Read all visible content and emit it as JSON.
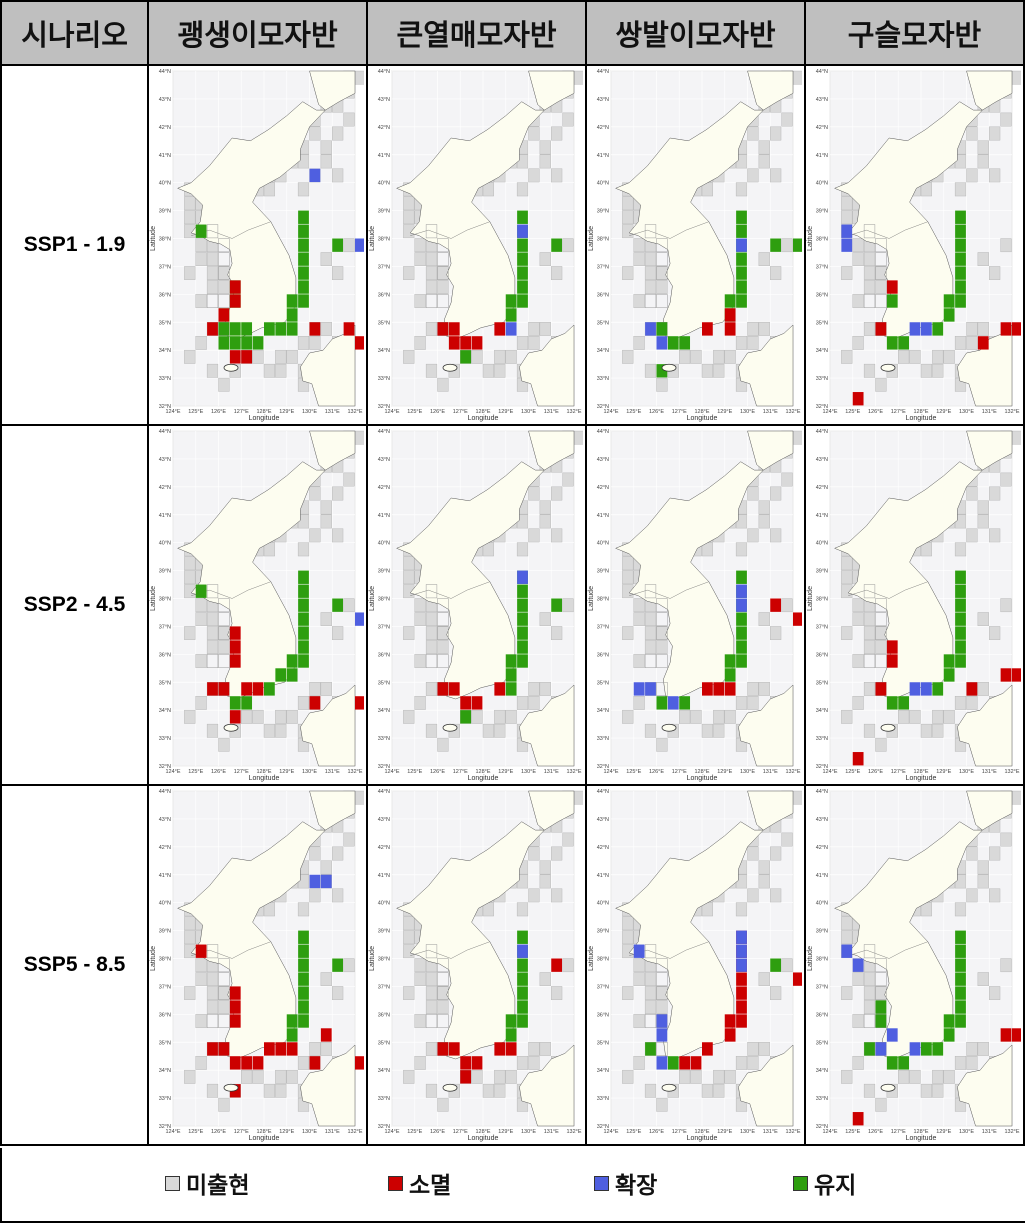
{
  "header": {
    "corner": "시나리오",
    "species": [
      "괭생이모자반",
      "큰열매모자반",
      "쌍발이모자반",
      "구슬모자반"
    ]
  },
  "scenarios": [
    "SSP1 - 1.9",
    "SSP2 - 4.5",
    "SSP5 - 8.5"
  ],
  "map_axes": {
    "lat_ticks": [
      "44°N",
      "43°N",
      "42°N",
      "41°N",
      "40°N",
      "39°N",
      "38°N",
      "37°N",
      "36°N",
      "35°N",
      "34°N",
      "33°N",
      "32°N"
    ],
    "lon_ticks": [
      "124°E",
      "125°E",
      "126°E",
      "127°E",
      "128°E",
      "129°E",
      "130°E",
      "131°E",
      "132°E"
    ],
    "xlabel": "Longitude",
    "ylabel": "Latitude"
  },
  "legend": [
    {
      "label": "미출현",
      "color": "#d9d9d9"
    },
    {
      "label": "소멸",
      "color": "#cc0000"
    },
    {
      "label": "확장",
      "color": "#4f5fe0"
    },
    {
      "label": "유지",
      "color": "#2e9e0f"
    }
  ],
  "colors": {
    "land": "#fdfdf0",
    "sea": "#f4f4f6",
    "absent": "#d9d9d9",
    "extinct": "#cc0000",
    "expand": "#4f5fe0",
    "maintain": "#2e9e0f"
  }
}
